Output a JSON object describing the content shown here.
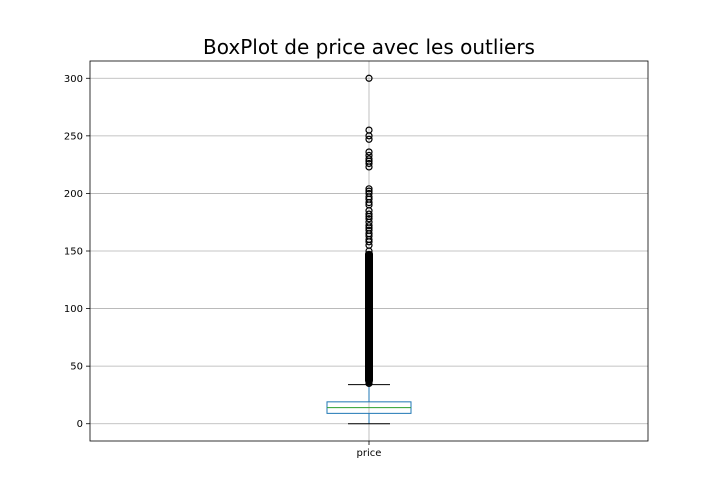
{
  "chart_data": {
    "type": "boxplot",
    "title": "BoxPlot de price avec les outliers",
    "xlabel": "",
    "ylabel": "",
    "categories": [
      "price"
    ],
    "ylim": [
      -15,
      315
    ],
    "yticks": [
      0,
      50,
      100,
      150,
      200,
      250,
      300
    ],
    "grid": true,
    "box": {
      "whisker_low": 0,
      "q1": 9,
      "median": 14,
      "q3": 19,
      "whisker_high": 34
    },
    "outliers": [
      35,
      36,
      37,
      38,
      39,
      40,
      42,
      44,
      46,
      48,
      50,
      53,
      56,
      60,
      64,
      68,
      72,
      76,
      80,
      85,
      90,
      95,
      100,
      105,
      110,
      115,
      120,
      125,
      130,
      135,
      140,
      145,
      150,
      155,
      158,
      160,
      163,
      165,
      168,
      170,
      172,
      175,
      178,
      180,
      182,
      185,
      190,
      192,
      195,
      197,
      200,
      202,
      204,
      223,
      226,
      228,
      230,
      233,
      236,
      247,
      250,
      255,
      300
    ],
    "colors": {
      "box": "#1f77b4",
      "median": "#2ca02c",
      "whisker": "#000000",
      "grid": "#b0b0b0"
    }
  }
}
